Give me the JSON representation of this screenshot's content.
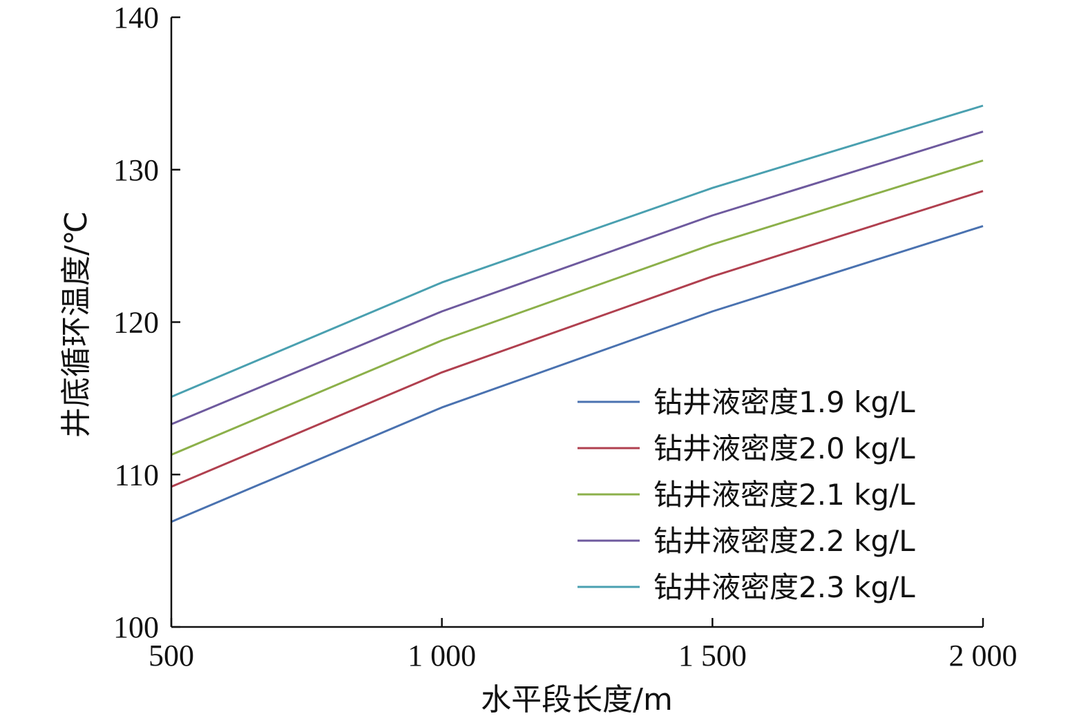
{
  "chart_data": {
    "type": "line",
    "xlabel": "水平段长度/m",
    "ylabel": "井底循环温度/℃",
    "xlim": [
      500,
      2000
    ],
    "ylim": [
      100,
      140
    ],
    "x_ticks": [
      {
        "value": 500,
        "label": "500"
      },
      {
        "value": 1000,
        "label": "1 000"
      },
      {
        "value": 1500,
        "label": "1 500"
      },
      {
        "value": 2000,
        "label": "2 000"
      }
    ],
    "y_ticks": [
      {
        "value": 100,
        "label": "100"
      },
      {
        "value": 110,
        "label": "110"
      },
      {
        "value": 120,
        "label": "120"
      },
      {
        "value": 130,
        "label": "130"
      },
      {
        "value": 140,
        "label": "140"
      }
    ],
    "grid": false,
    "legend_position": "bottom-right",
    "x": [
      500,
      1000,
      1500,
      2000
    ],
    "series": [
      {
        "name": "钻井液密度1.9 kg/L",
        "color": "#4a72b0",
        "values": [
          106.9,
          114.4,
          120.7,
          126.3
        ]
      },
      {
        "name": "钻井液密度2.0 kg/L",
        "color": "#b0404f",
        "values": [
          109.2,
          116.7,
          123.0,
          128.6
        ]
      },
      {
        "name": "钻井液密度2.1 kg/L",
        "color": "#8cb04a",
        "values": [
          111.3,
          118.8,
          125.1,
          130.6
        ]
      },
      {
        "name": "钻井液密度2.2 kg/L",
        "color": "#6e5a9e",
        "values": [
          113.3,
          120.7,
          127.0,
          132.5
        ]
      },
      {
        "name": "钻井液密度2.3 kg/L",
        "color": "#4aa0b0",
        "values": [
          115.1,
          122.6,
          128.8,
          134.2
        ]
      }
    ]
  }
}
